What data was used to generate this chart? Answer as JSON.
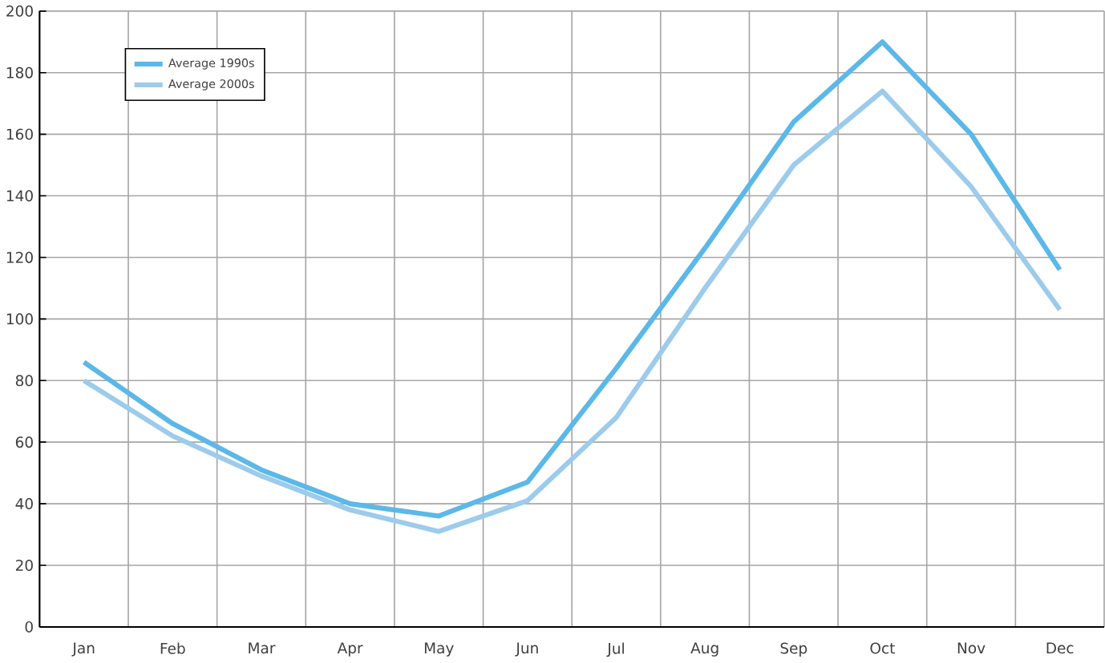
{
  "chart_data": {
    "type": "line",
    "categories": [
      "Jan",
      "Feb",
      "Mar",
      "Apr",
      "May",
      "Jun",
      "Jul",
      "Aug",
      "Sep",
      "Oct",
      "Nov",
      "Dec"
    ],
    "series": [
      {
        "name": "Average 1990s",
        "color": "#5bb8e8",
        "values": [
          86,
          66,
          51,
          40,
          36,
          47,
          84,
          123,
          164,
          190,
          160,
          116
        ]
      },
      {
        "name": "Average 2000s",
        "color": "#9ccbec",
        "values": [
          80,
          62,
          49,
          38,
          31,
          41,
          68,
          110,
          150,
          174,
          143,
          103
        ]
      }
    ],
    "ylim": [
      0,
      200
    ],
    "yticks": [
      0,
      20,
      40,
      60,
      80,
      100,
      120,
      140,
      160,
      180,
      200
    ],
    "grid": true,
    "legend": "top left",
    "marker": "none",
    "line_style": "solid"
  }
}
